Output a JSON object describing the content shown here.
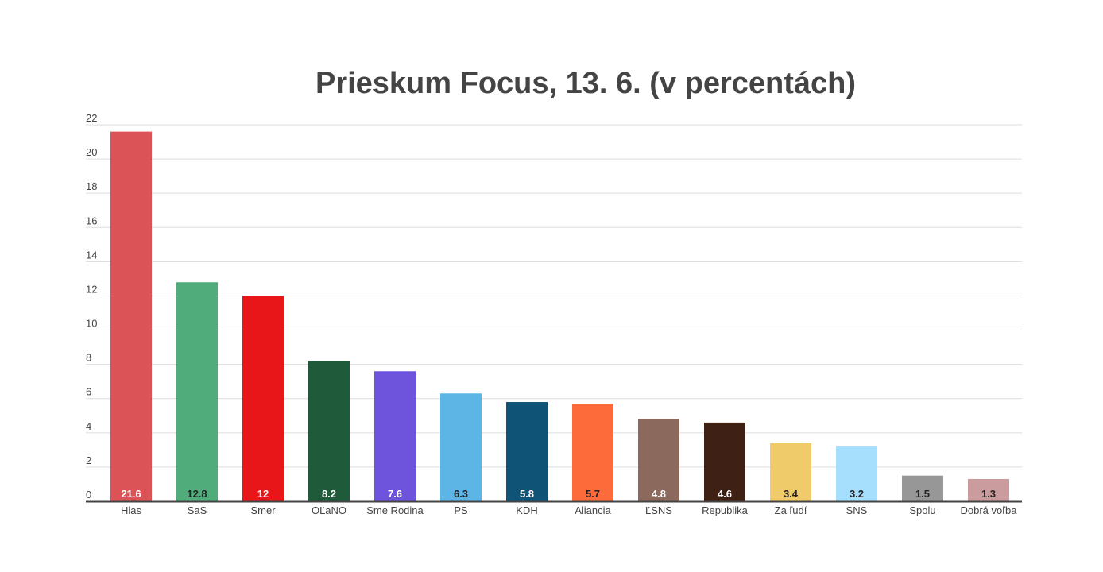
{
  "chart_data": {
    "type": "bar",
    "title": "Prieskum Focus, 13. 6. (v percentách)",
    "xlabel": "",
    "ylabel": "",
    "ylim": [
      0,
      22
    ],
    "yticks": [
      0,
      2,
      4,
      6,
      8,
      10,
      12,
      14,
      16,
      18,
      20,
      22
    ],
    "grid": true,
    "legend": "none",
    "categories": [
      "Hlas",
      "SaS",
      "Smer",
      "OĽaNO",
      "Sme Rodina",
      "PS",
      "KDH",
      "Aliancia",
      "ĽSNS",
      "Republika",
      "Za ľudí",
      "SNS",
      "Spolu",
      "Dobrá voľba"
    ],
    "values": [
      21.6,
      12.8,
      12,
      8.2,
      7.6,
      6.3,
      5.8,
      5.7,
      4.8,
      4.6,
      3.4,
      3.2,
      1.5,
      1.3
    ],
    "data_labels": [
      "21.6",
      "12.8",
      "12",
      "8.2",
      "7.6",
      "6.3",
      "5.8",
      "5.7",
      "4.8",
      "4.6",
      "3.4",
      "3.2",
      "1.5",
      "1.3"
    ],
    "colors": [
      "#dc5357",
      "#50ac7b",
      "#e81519",
      "#1f5a3a",
      "#6e53dc",
      "#5db5e5",
      "#0f5377",
      "#fd6b3a",
      "#8b695c",
      "#3e2015",
      "#efcb6a",
      "#a5dffd",
      "#979797",
      "#cb9c9d"
    ],
    "label_colors": [
      "#ffffff",
      "#222222",
      "#ffffff",
      "#ffffff",
      "#ffffff",
      "#222222",
      "#ffffff",
      "#222222",
      "#ffffff",
      "#ffffff",
      "#222222",
      "#222222",
      "#222222",
      "#222222"
    ]
  }
}
